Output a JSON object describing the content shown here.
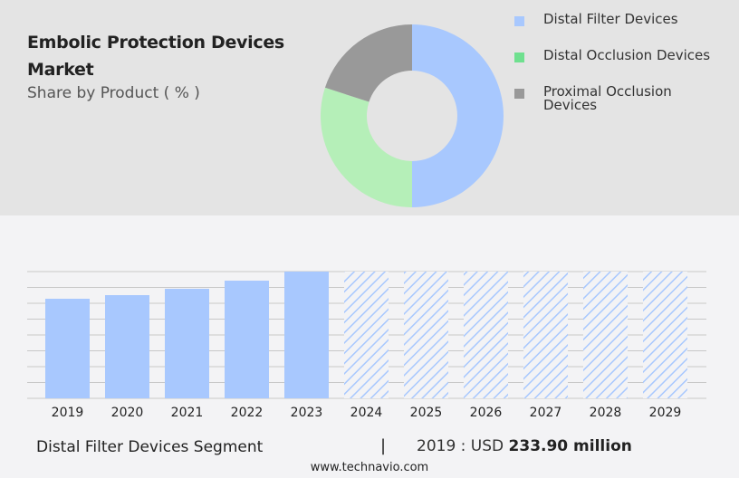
{
  "header": {
    "title": "Embolic Protection Devices Market",
    "subtitle": "Share by Product ( % )"
  },
  "colors": {
    "distal_filter": "#a8c8fe",
    "distal_occlusion": "#b5efb8",
    "distal_occlusion_legend": "#6fe08f",
    "proximal_occlusion": "#999999",
    "hatch": "#a8c8fe"
  },
  "chart_data": [
    {
      "type": "pie",
      "donut": true,
      "legend": [
        "Distal Filter Devices",
        "Distal Occlusion Devices",
        "Proximal Occlusion Devices"
      ],
      "values": [
        50,
        30,
        20
      ],
      "legend_placement": "right"
    },
    {
      "type": "bar",
      "categories": [
        "2019",
        "2020",
        "2021",
        "2022",
        "2023",
        "2024",
        "2025",
        "2026",
        "2027",
        "2028",
        "2029"
      ],
      "values": [
        233.9,
        242.4,
        257.3,
        276.4,
        297.7,
        null,
        null,
        null,
        null,
        null,
        null
      ],
      "forecast_years": [
        "2024",
        "2025",
        "2026",
        "2027",
        "2028",
        "2029"
      ],
      "grid": true,
      "ylim": [
        0,
        297.7
      ]
    }
  ],
  "footer": {
    "segment": "Distal Filter Devices Segment",
    "separator": "|",
    "year_label": "2019 : USD",
    "value": "233.90 million",
    "site": "www.technavio.com"
  }
}
